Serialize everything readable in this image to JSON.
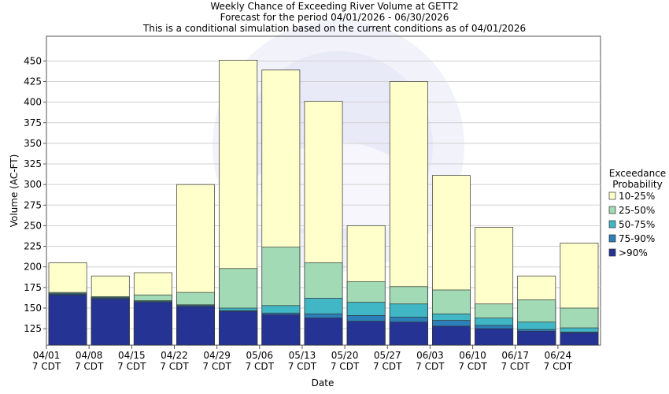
{
  "chart_data": {
    "type": "bar",
    "title": "Weekly Chance of Exceeding River Volume at GETT2",
    "subtitle": "Forecast for the period 04/01/2026 - 06/30/2026",
    "subtitle2": "This is a conditional simulation based on the current conditions as of 04/01/2026",
    "xlabel": "Date",
    "ylabel": "Volume (AC-FT)",
    "ylim": [
      105,
      480
    ],
    "yticks": [
      125,
      150,
      175,
      200,
      225,
      250,
      275,
      300,
      325,
      350,
      375,
      400,
      425,
      450
    ],
    "categories": [
      "04/01",
      "04/08",
      "04/15",
      "04/22",
      "04/29",
      "05/06",
      "05/13",
      "05/20",
      "05/27",
      "06/03",
      "06/10",
      "06/17",
      "06/24"
    ],
    "category_sub": "7 CDT",
    "legend": {
      "title_line1": "Exceedance",
      "title_line2": "Probability",
      "placement": "right",
      "entries": [
        "10-25%",
        "25-50%",
        "50-75%",
        "75-90%",
        ">90%"
      ]
    },
    "colors": [
      "#ffffcc",
      "#a1dab4",
      "#41b6c4",
      "#2c7fb8",
      "#253494"
    ],
    "series": [
      {
        "name": ">90%",
        "values": [
          166,
          161,
          157,
          152,
          146,
          142,
          138,
          134,
          133,
          128,
          125,
          122,
          120
        ]
      },
      {
        "name": "75-90%",
        "values": [
          167,
          162,
          158,
          153,
          147,
          144,
          143,
          141,
          139,
          135,
          129,
          124,
          121
        ]
      },
      {
        "name": "50-75%",
        "values": [
          168,
          163,
          159,
          154,
          150,
          153,
          162,
          157,
          155,
          143,
          138,
          133,
          126
        ]
      },
      {
        "name": "25-50%",
        "values": [
          169,
          164,
          166,
          169,
          198,
          224,
          205,
          182,
          176,
          172,
          155,
          160,
          150
        ]
      },
      {
        "name": "10-25%",
        "values": [
          205,
          189,
          193,
          300,
          451,
          439,
          401,
          250,
          425,
          311,
          248,
          189,
          229
        ]
      }
    ]
  }
}
